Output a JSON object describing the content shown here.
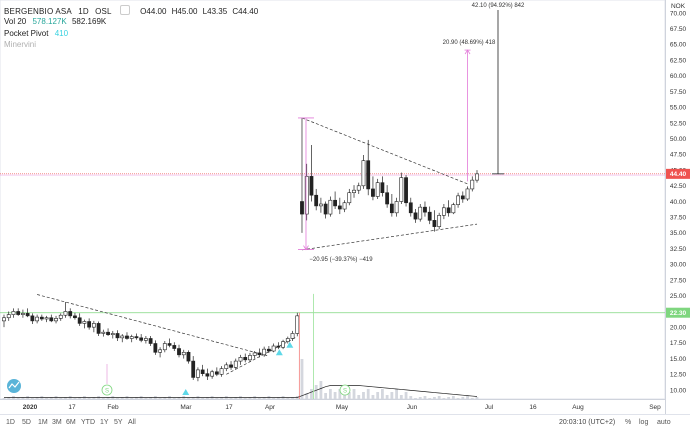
{
  "header": {
    "symbol": "BERGENBIO ASA",
    "interval": "1D",
    "exchange": "OSL",
    "open": "O44.00",
    "high": "H45.00",
    "low": "L43.35",
    "close": "C44.40"
  },
  "indicators": [
    {
      "name": "Vol 20",
      "values": [
        "578.127K",
        "582.169K"
      ]
    },
    {
      "name": "Pocket Pivot",
      "values": [
        "410"
      ]
    },
    {
      "name": "Minervini",
      "values": []
    }
  ],
  "price_axis": {
    "currency": "NOK",
    "ticks": [
      "70.00",
      "67.50",
      "65.00",
      "62.50",
      "60.00",
      "57.50",
      "55.00",
      "52.50",
      "50.00",
      "47.50",
      "45.00",
      "42.50",
      "40.00",
      "37.50",
      "35.00",
      "32.50",
      "30.00",
      "27.50",
      "25.00",
      "22.50",
      "20.00",
      "17.50",
      "15.00",
      "12.50",
      "10.00"
    ],
    "last_price": "44.40",
    "line_level": "22.30"
  },
  "time_axis": {
    "labels": [
      "2020",
      "17",
      "Feb",
      "Mar",
      "17",
      "Apr",
      "May",
      "Jun",
      "Jul",
      "16",
      "Aug",
      "Sep"
    ]
  },
  "annotations": {
    "long_measure": "42.10 (94.92%) 842",
    "mid_measure": "20.90 (48.69%) 418",
    "down_measure": "−20.95 (−39.37%) −419"
  },
  "event_markers": [
    "S",
    "S"
  ],
  "bottombar": {
    "ranges": [
      "1D",
      "5D",
      "1M",
      "3M",
      "6M",
      "YTD",
      "1Y",
      "5Y",
      "All"
    ],
    "clock": "20:03:10 (UTC+2)",
    "pct": "%",
    "log": "log",
    "auto": "auto"
  },
  "colors": {
    "up": "#333333",
    "down": "#000000",
    "measure_pink": "#e27ad8",
    "level_green": "#7fd67f",
    "last_price_red": "#ef5350",
    "triangle_marker": "#5ed8e8"
  },
  "chart_data": {
    "type": "candlestick",
    "y_range": [
      8.5,
      71
    ],
    "x_range_days": [
      0,
      252
    ],
    "candles": [
      {
        "d": 0,
        "o": 21,
        "h": 22,
        "l": 20,
        "c": 21.5
      },
      {
        "d": 2,
        "o": 21.5,
        "h": 22.5,
        "l": 21,
        "c": 22
      },
      {
        "d": 4,
        "o": 22,
        "h": 23,
        "l": 21.5,
        "c": 22.5
      },
      {
        "d": 6,
        "o": 22.5,
        "h": 23,
        "l": 21.8,
        "c": 22
      },
      {
        "d": 8,
        "o": 22,
        "h": 22.8,
        "l": 21.5,
        "c": 22.2
      },
      {
        "d": 10,
        "o": 22.2,
        "h": 23,
        "l": 21.6,
        "c": 21.8
      },
      {
        "d": 12,
        "o": 21.8,
        "h": 22.2,
        "l": 20.5,
        "c": 21
      },
      {
        "d": 14,
        "o": 21,
        "h": 22,
        "l": 20.6,
        "c": 21.6
      },
      {
        "d": 16,
        "o": 21.6,
        "h": 22,
        "l": 21,
        "c": 21.3
      },
      {
        "d": 18,
        "o": 21.3,
        "h": 21.8,
        "l": 20.8,
        "c": 21.5
      },
      {
        "d": 20,
        "o": 21.5,
        "h": 22,
        "l": 20.8,
        "c": 21
      },
      {
        "d": 22,
        "o": 21,
        "h": 21.8,
        "l": 20.6,
        "c": 21.4
      },
      {
        "d": 24,
        "o": 21.4,
        "h": 22.2,
        "l": 21,
        "c": 21.9
      },
      {
        "d": 26,
        "o": 21.9,
        "h": 24,
        "l": 21.5,
        "c": 22.5
      },
      {
        "d": 28,
        "o": 22.5,
        "h": 23,
        "l": 21.4,
        "c": 21.8
      },
      {
        "d": 30,
        "o": 21.8,
        "h": 22.3,
        "l": 21.2,
        "c": 21.5
      },
      {
        "d": 32,
        "o": 21.5,
        "h": 22.2,
        "l": 20.2,
        "c": 20.6
      },
      {
        "d": 34,
        "o": 20.6,
        "h": 21.2,
        "l": 19.8,
        "c": 20.9
      },
      {
        "d": 36,
        "o": 20.9,
        "h": 21.4,
        "l": 19.6,
        "c": 20
      },
      {
        "d": 38,
        "o": 20,
        "h": 21,
        "l": 19.2,
        "c": 20.6
      },
      {
        "d": 40,
        "o": 20.6,
        "h": 20.9,
        "l": 18.6,
        "c": 19
      },
      {
        "d": 42,
        "o": 19,
        "h": 19.6,
        "l": 18.5,
        "c": 19.2
      },
      {
        "d": 44,
        "o": 19.2,
        "h": 19.8,
        "l": 18.6,
        "c": 18.8
      },
      {
        "d": 46,
        "o": 18.8,
        "h": 19.4,
        "l": 18.2,
        "c": 19
      },
      {
        "d": 48,
        "o": 19,
        "h": 19.5,
        "l": 17.8,
        "c": 18.3
      },
      {
        "d": 50,
        "o": 18.3,
        "h": 18.9,
        "l": 17.6,
        "c": 18.6
      },
      {
        "d": 52,
        "o": 18.6,
        "h": 19.2,
        "l": 18,
        "c": 18.2
      },
      {
        "d": 54,
        "o": 18.2,
        "h": 18.8,
        "l": 17.6,
        "c": 18.5
      },
      {
        "d": 56,
        "o": 18.5,
        "h": 19,
        "l": 18,
        "c": 18.3
      },
      {
        "d": 58,
        "o": 18.3,
        "h": 18.9,
        "l": 17.6,
        "c": 17.9
      },
      {
        "d": 60,
        "o": 17.9,
        "h": 18.6,
        "l": 17.4,
        "c": 18.2
      },
      {
        "d": 62,
        "o": 18.2,
        "h": 18.6,
        "l": 17,
        "c": 17.4
      },
      {
        "d": 64,
        "o": 17.4,
        "h": 17.9,
        "l": 15.6,
        "c": 16
      },
      {
        "d": 66,
        "o": 16,
        "h": 16.8,
        "l": 15.2,
        "c": 16.4
      },
      {
        "d": 68,
        "o": 16.4,
        "h": 17.8,
        "l": 16,
        "c": 17.4
      },
      {
        "d": 70,
        "o": 17.4,
        "h": 18.2,
        "l": 16.8,
        "c": 17.1
      },
      {
        "d": 72,
        "o": 17.1,
        "h": 17.6,
        "l": 16.2,
        "c": 16.6
      },
      {
        "d": 74,
        "o": 16.6,
        "h": 17.2,
        "l": 15.2,
        "c": 15.6
      },
      {
        "d": 76,
        "o": 15.6,
        "h": 16.4,
        "l": 15,
        "c": 16
      },
      {
        "d": 78,
        "o": 16,
        "h": 16.3,
        "l": 14.2,
        "c": 14.6
      },
      {
        "d": 80,
        "o": 14.6,
        "h": 15.4,
        "l": 11.6,
        "c": 12
      },
      {
        "d": 82,
        "o": 12,
        "h": 13.6,
        "l": 11.4,
        "c": 13.2
      },
      {
        "d": 84,
        "o": 13.2,
        "h": 14,
        "l": 12.2,
        "c": 12.6
      },
      {
        "d": 86,
        "o": 12.6,
        "h": 13.4,
        "l": 11.6,
        "c": 12.2
      },
      {
        "d": 88,
        "o": 12.2,
        "h": 13.2,
        "l": 11.8,
        "c": 12.9
      },
      {
        "d": 90,
        "o": 12.9,
        "h": 13.6,
        "l": 12.2,
        "c": 12.5
      },
      {
        "d": 92,
        "o": 12.5,
        "h": 13.8,
        "l": 12.1,
        "c": 13.4
      },
      {
        "d": 94,
        "o": 13.4,
        "h": 14.4,
        "l": 13,
        "c": 14
      },
      {
        "d": 96,
        "o": 14,
        "h": 14.6,
        "l": 13.2,
        "c": 13.6
      },
      {
        "d": 98,
        "o": 13.6,
        "h": 15,
        "l": 13.3,
        "c": 14.6
      },
      {
        "d": 100,
        "o": 14.6,
        "h": 15.6,
        "l": 14,
        "c": 15.2
      },
      {
        "d": 102,
        "o": 15.2,
        "h": 15.8,
        "l": 14.4,
        "c": 14.8
      },
      {
        "d": 104,
        "o": 14.8,
        "h": 15.9,
        "l": 14.5,
        "c": 15.5
      },
      {
        "d": 106,
        "o": 15.5,
        "h": 16.2,
        "l": 15,
        "c": 15.9
      },
      {
        "d": 108,
        "o": 15.9,
        "h": 16.6,
        "l": 15.2,
        "c": 15.6
      },
      {
        "d": 110,
        "o": 15.6,
        "h": 16.9,
        "l": 15.3,
        "c": 16.5
      },
      {
        "d": 112,
        "o": 16.5,
        "h": 17,
        "l": 15.9,
        "c": 16.2
      },
      {
        "d": 114,
        "o": 16.2,
        "h": 17.4,
        "l": 16,
        "c": 17
      },
      {
        "d": 116,
        "o": 17,
        "h": 17.6,
        "l": 16.5,
        "c": 16.8
      },
      {
        "d": 118,
        "o": 16.8,
        "h": 18,
        "l": 16.5,
        "c": 17.7
      },
      {
        "d": 120,
        "o": 17.7,
        "h": 18.5,
        "l": 17.4,
        "c": 18.2
      },
      {
        "d": 122,
        "o": 18.2,
        "h": 19.4,
        "l": 17.8,
        "c": 19
      },
      {
        "d": 124,
        "o": 19,
        "h": 22.3,
        "l": 18.6,
        "c": 21.8
      },
      {
        "d": 126,
        "o": 40,
        "h": 53.3,
        "l": 35,
        "c": 38
      },
      {
        "d": 128,
        "o": 38,
        "h": 46,
        "l": 37,
        "c": 44
      },
      {
        "d": 130,
        "o": 44,
        "h": 49,
        "l": 40,
        "c": 41
      },
      {
        "d": 132,
        "o": 41,
        "h": 42,
        "l": 38.6,
        "c": 39.3
      },
      {
        "d": 134,
        "o": 39.3,
        "h": 40.6,
        "l": 38.2,
        "c": 39.6
      },
      {
        "d": 136,
        "o": 39.6,
        "h": 40,
        "l": 37.3,
        "c": 38
      },
      {
        "d": 138,
        "o": 38,
        "h": 40.8,
        "l": 37.6,
        "c": 40.2
      },
      {
        "d": 140,
        "o": 40.2,
        "h": 41.6,
        "l": 38.8,
        "c": 39.3
      },
      {
        "d": 142,
        "o": 39.3,
        "h": 40.6,
        "l": 38,
        "c": 38.8
      },
      {
        "d": 144,
        "o": 38.8,
        "h": 40.2,
        "l": 38.3,
        "c": 39.8
      },
      {
        "d": 146,
        "o": 39.8,
        "h": 42,
        "l": 39.4,
        "c": 41.4
      },
      {
        "d": 148,
        "o": 41.4,
        "h": 42.6,
        "l": 40.6,
        "c": 41.8
      },
      {
        "d": 150,
        "o": 41.8,
        "h": 43,
        "l": 41.2,
        "c": 42.5
      },
      {
        "d": 152,
        "o": 42.5,
        "h": 47.4,
        "l": 42,
        "c": 46.5
      },
      {
        "d": 154,
        "o": 46.5,
        "h": 49.8,
        "l": 41,
        "c": 42
      },
      {
        "d": 156,
        "o": 42,
        "h": 44,
        "l": 40.2,
        "c": 40.8
      },
      {
        "d": 158,
        "o": 40.8,
        "h": 43.6,
        "l": 40.4,
        "c": 43
      },
      {
        "d": 160,
        "o": 43,
        "h": 44,
        "l": 40.8,
        "c": 41.4
      },
      {
        "d": 162,
        "o": 41.4,
        "h": 42.6,
        "l": 39,
        "c": 39.6
      },
      {
        "d": 164,
        "o": 39.6,
        "h": 41.2,
        "l": 37.6,
        "c": 38.2
      },
      {
        "d": 166,
        "o": 38.2,
        "h": 40.6,
        "l": 37.6,
        "c": 40
      },
      {
        "d": 168,
        "o": 40,
        "h": 44.6,
        "l": 39.6,
        "c": 43.8
      },
      {
        "d": 170,
        "o": 43.8,
        "h": 44.2,
        "l": 39.2,
        "c": 39.8
      },
      {
        "d": 172,
        "o": 39.8,
        "h": 40.6,
        "l": 37.6,
        "c": 38.2
      },
      {
        "d": 174,
        "o": 38.2,
        "h": 38.8,
        "l": 36.6,
        "c": 37.2
      },
      {
        "d": 176,
        "o": 37.2,
        "h": 39.6,
        "l": 36.8,
        "c": 39.1
      },
      {
        "d": 178,
        "o": 39.1,
        "h": 40,
        "l": 37.6,
        "c": 38.3
      },
      {
        "d": 180,
        "o": 38.3,
        "h": 39.2,
        "l": 36.4,
        "c": 37
      },
      {
        "d": 182,
        "o": 37,
        "h": 38.6,
        "l": 35.2,
        "c": 36
      },
      {
        "d": 184,
        "o": 36,
        "h": 38.2,
        "l": 35.6,
        "c": 37.8
      },
      {
        "d": 186,
        "o": 37.8,
        "h": 39.6,
        "l": 37.2,
        "c": 39
      },
      {
        "d": 188,
        "o": 39,
        "h": 40.2,
        "l": 37.6,
        "c": 38.2
      },
      {
        "d": 190,
        "o": 38.2,
        "h": 39.8,
        "l": 38,
        "c": 39.5
      },
      {
        "d": 192,
        "o": 39.5,
        "h": 41.4,
        "l": 39,
        "c": 40.9
      },
      {
        "d": 194,
        "o": 40.9,
        "h": 41.6,
        "l": 39.8,
        "c": 40.4
      },
      {
        "d": 196,
        "o": 40.4,
        "h": 42.4,
        "l": 40.1,
        "c": 42
      },
      {
        "d": 198,
        "o": 42,
        "h": 44,
        "l": 41.6,
        "c": 43.4
      },
      {
        "d": 200,
        "o": 43.4,
        "h": 45,
        "l": 43,
        "c": 44.4
      }
    ],
    "volume_ma_curve": "approx",
    "horizontal_levels": [
      22.3
    ],
    "last_price": 44.4
  }
}
